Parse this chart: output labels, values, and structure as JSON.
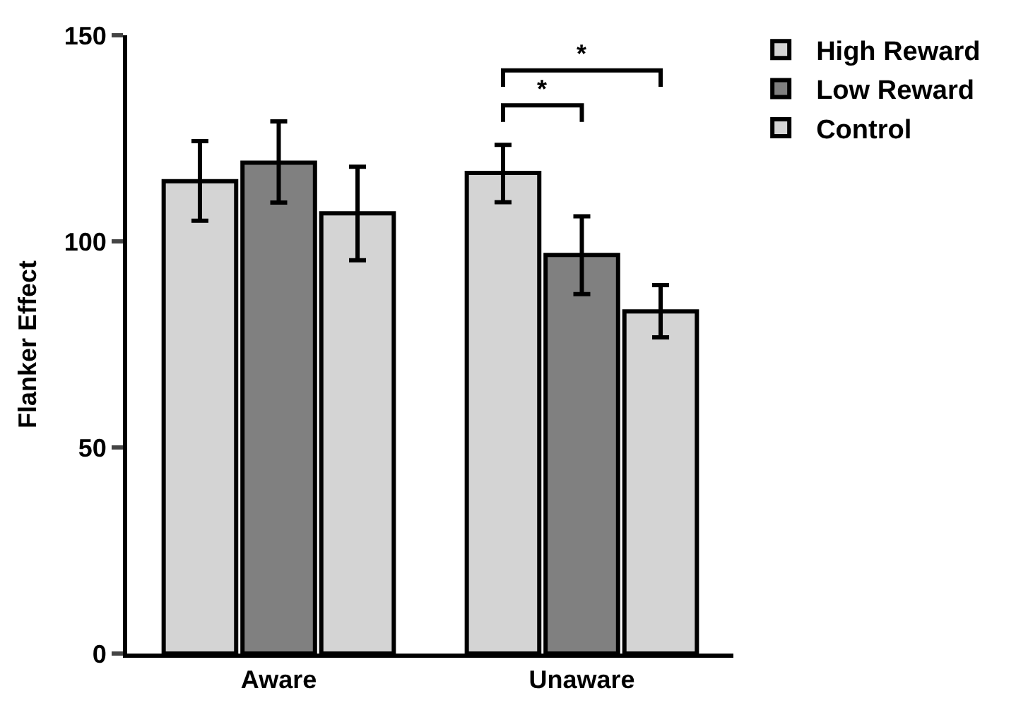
{
  "chart_data": {
    "type": "bar",
    "ylabel": "Flanker Effect",
    "categories": [
      "Aware",
      "Unaware"
    ],
    "series": [
      {
        "name": "High Reward",
        "color": "#d4d4d4",
        "values": [
          114.6,
          116.6
        ],
        "errors": [
          [
            105.0,
            124.3
          ],
          [
            109.5,
            123.4
          ]
        ]
      },
      {
        "name": "Low Reward",
        "color": "#808080",
        "values": [
          119.1,
          96.7
        ],
        "errors": [
          [
            109.4,
            129.1
          ],
          [
            87.2,
            106.1
          ]
        ]
      },
      {
        "name": "Control",
        "color": "#d4d4d4",
        "values": [
          106.8,
          83.0
        ],
        "errors": [
          [
            95.4,
            118.1
          ],
          [
            76.7,
            89.4
          ]
        ]
      }
    ],
    "ylim": [
      0,
      150
    ],
    "yticks": [
      0,
      50,
      100,
      150
    ],
    "legend": "top right",
    "annotations": [
      "*",
      "*"
    ]
  }
}
